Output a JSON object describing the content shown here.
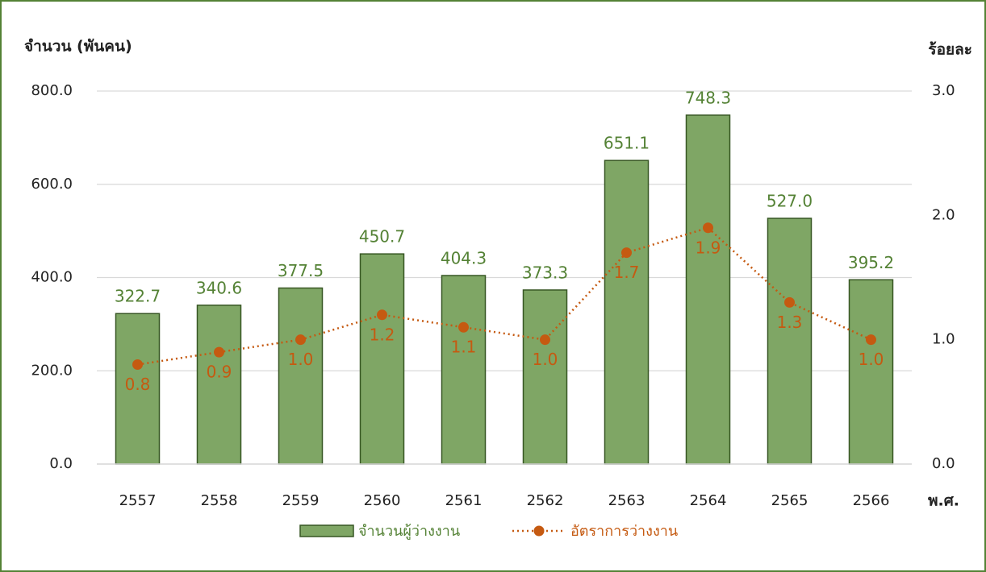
{
  "chart_data": {
    "type": "bar",
    "y_label": "จำนวน (พันคน)",
    "y2_label": "ร้อยละ",
    "x_label": "พ.ศ.",
    "categories": [
      "2557",
      "2558",
      "2559",
      "2560",
      "2561",
      "2562",
      "2563",
      "2564",
      "2565",
      "2566"
    ],
    "series": [
      {
        "name": "จำนวนผู้ว่างงาน",
        "type": "bar",
        "color": "#7fa665",
        "values": [
          322.7,
          340.6,
          377.5,
          450.7,
          404.3,
          373.3,
          651.1,
          748.3,
          527.0,
          395.2
        ],
        "value_labels": [
          "322.7",
          "340.6",
          "377.5",
          "450.7",
          "404.3",
          "373.3",
          "651.1",
          "748.3",
          "527.0",
          "395.2"
        ]
      },
      {
        "name": "อัตราการว่างงาน",
        "type": "line",
        "axis": "y2",
        "color": "#c55a11",
        "values": [
          0.8,
          0.9,
          1.0,
          1.2,
          1.1,
          1.0,
          1.7,
          1.9,
          1.3,
          1.0
        ],
        "value_labels": [
          "0.8",
          "0.9",
          "1.0",
          "1.2",
          "1.1",
          "1.0",
          "1.7",
          "1.9",
          "1.3",
          "1.0"
        ]
      }
    ],
    "ylim": [
      0,
      800
    ],
    "yticks": [
      {
        "value": 0,
        "label": "0.0"
      },
      {
        "value": 200,
        "label": "200.0"
      },
      {
        "value": 400,
        "label": "400.0"
      },
      {
        "value": 600,
        "label": "600.0"
      },
      {
        "value": 800,
        "label": "800.0"
      }
    ],
    "y2lim": [
      0,
      3
    ],
    "y2ticks": [
      {
        "value": 0,
        "label": "0.0"
      },
      {
        "value": 1,
        "label": "1.0"
      },
      {
        "value": 2,
        "label": "2.0"
      },
      {
        "value": 3,
        "label": "3.0"
      }
    ],
    "grid": true
  }
}
